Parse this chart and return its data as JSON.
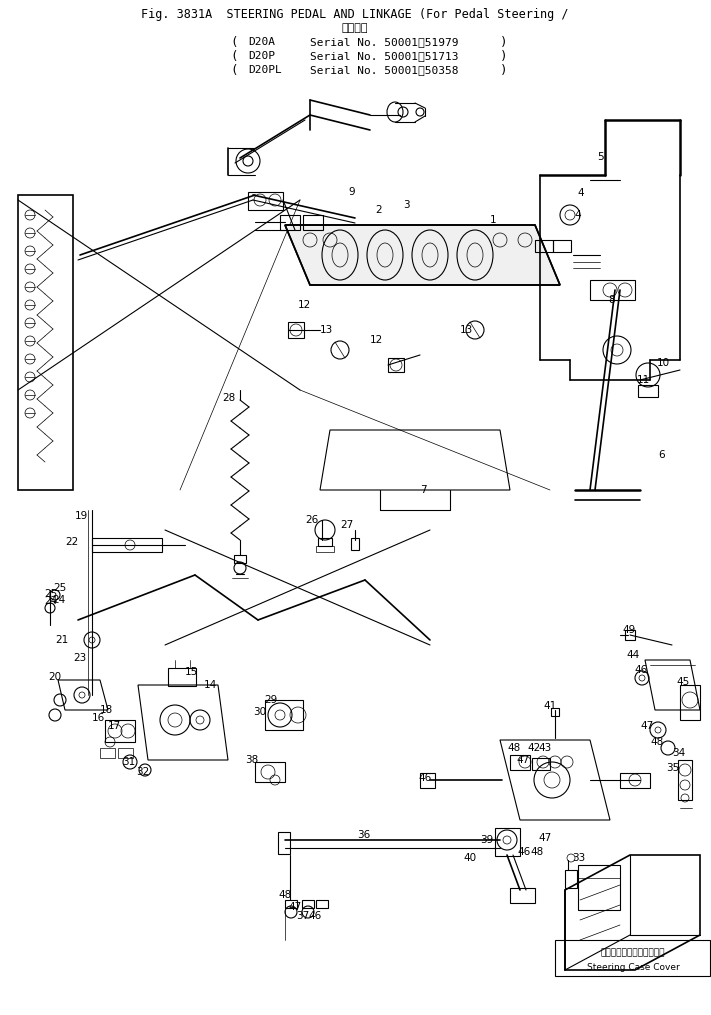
{
  "title_line1": "Fig. 3831A  STEERING PEDAL AND LINKAGE (For Pedal Steering /",
  "title_applicable": "適用号機",
  "serial_lines": [
    {
      "model": "D20A",
      "text": "Serial No. 50001～51979"
    },
    {
      "model": "D20P",
      "text": "Serial No. 50001～51713"
    },
    {
      "model": "D20PL",
      "text": "Serial No. 50001～50358"
    }
  ],
  "background_color": "#ffffff",
  "text_color": "#000000",
  "fig_width": 7.11,
  "fig_height": 10.15,
  "dpi": 100,
  "annotation_ja": "ステアリングケースカバー",
  "annotation_en": "Steering Case Cover"
}
